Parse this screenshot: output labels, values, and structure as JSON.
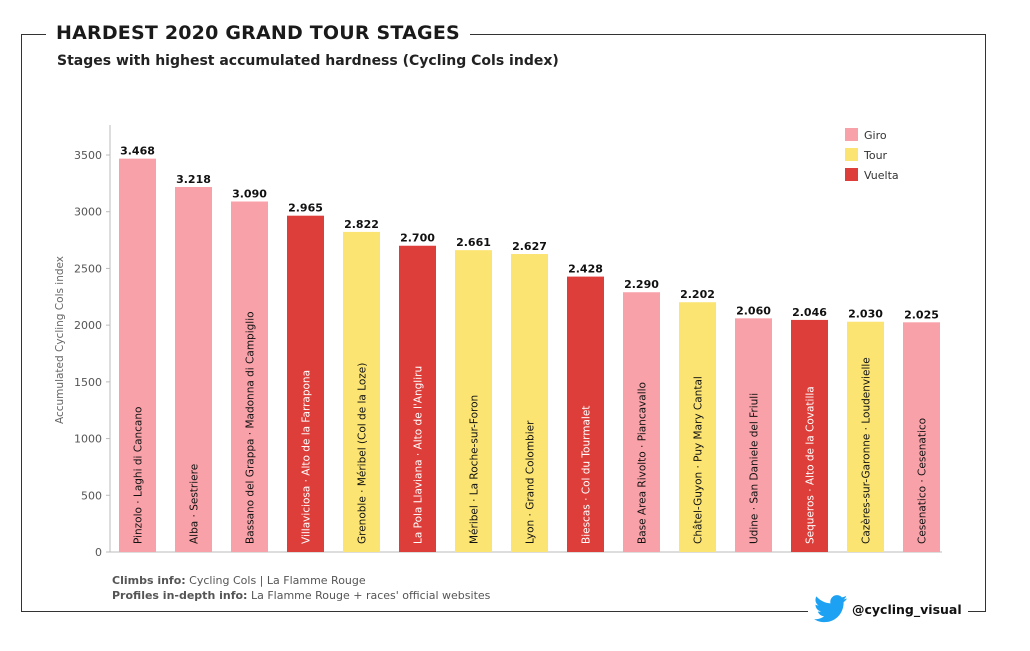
{
  "header": {
    "title": "HARDEST 2020 GRAND TOUR STAGES",
    "subtitle": "Stages with highest accumulated hardness (Cycling Cols index)"
  },
  "footer": {
    "climbs_label": "Climbs info:",
    "climbs_value": "Cycling Cols | La Flamme Rouge",
    "profiles_label": "Profiles in-depth info:",
    "profiles_value": "La Flamme Rouge + races' official websites"
  },
  "branding": {
    "handle": "@cycling_visual",
    "icon": "twitter-bird-icon"
  },
  "colors": {
    "Giro": "#f9a1a8",
    "Tour": "#fbe472",
    "Vuelta": "#dd3e3a"
  },
  "chart_data": {
    "type": "bar",
    "ylabel": "Accumulated Cycling Cols index",
    "ylim": [
      0,
      3700
    ],
    "yticks": [
      0,
      500,
      1000,
      1500,
      2000,
      2500,
      3000,
      3500
    ],
    "grid": false,
    "legend_position": "top-right",
    "legend": [
      "Giro",
      "Tour",
      "Vuelta"
    ],
    "categories": [
      "Pinzolo · Laghi di Cancano",
      "Alba · Sestriere",
      "Bassano del Grappa · Madonna di Campiglio",
      "Villaviciosa · Alto de la Farrapona",
      "Grenoble · Méribel (Col de la Loze)",
      "La Pola Llaviana · Alto de l'Angliru",
      "Méribel · La Roche-sur-Foron",
      "Lyon · Grand Colombier",
      "Biescas · Col du Tourmalet",
      "Base Area Rivolto · Piancavallo",
      "Châtel-Guyon · Puy Mary Cantal",
      "Udine · San Daniele del Friuli",
      "Sequeros · Alto de la Covatilla",
      "Cazères-sur-Garonne · Loudenvielle",
      "Cesenatico · Cesenatico"
    ],
    "values": [
      3468,
      3218,
      3090,
      2965,
      2822,
      2700,
      2661,
      2627,
      2428,
      2290,
      2202,
      2060,
      2046,
      2030,
      2025
    ],
    "value_labels": [
      "3.468",
      "3.218",
      "3.090",
      "2.965",
      "2.822",
      "2.700",
      "2.661",
      "2.627",
      "2.428",
      "2.290",
      "2.202",
      "2.060",
      "2.046",
      "2.030",
      "2.025"
    ],
    "race": [
      "Giro",
      "Giro",
      "Giro",
      "Vuelta",
      "Tour",
      "Vuelta",
      "Tour",
      "Tour",
      "Vuelta",
      "Giro",
      "Tour",
      "Giro",
      "Vuelta",
      "Tour",
      "Giro"
    ]
  }
}
